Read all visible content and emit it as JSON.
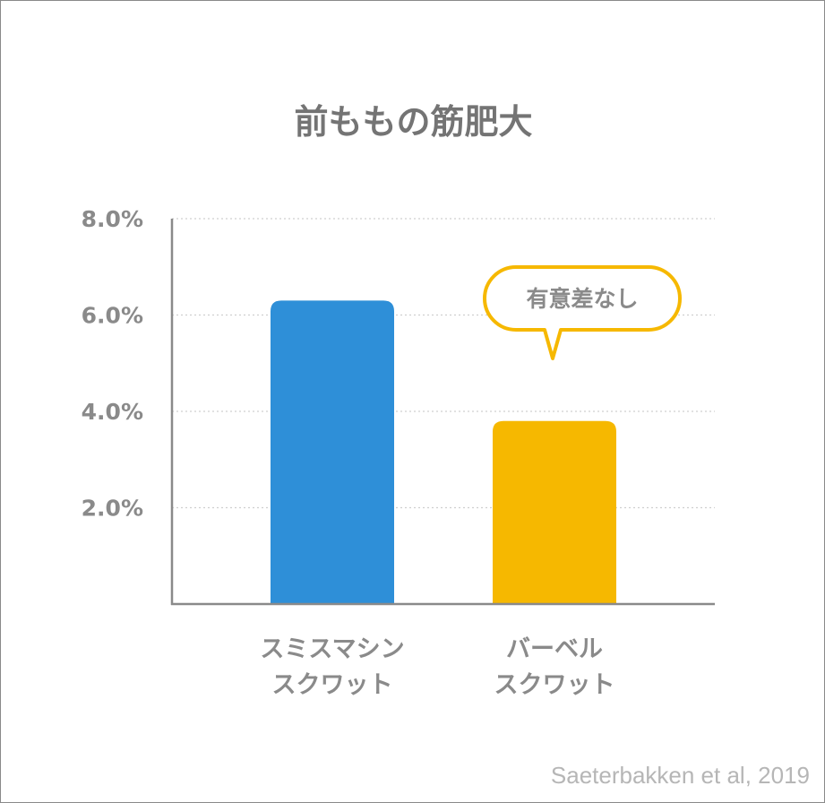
{
  "chart_data": {
    "type": "bar",
    "title": "前ももの筋肥大",
    "categories": [
      [
        "スミスマシン",
        "スクワット"
      ],
      [
        "バーベル",
        "スクワット"
      ]
    ],
    "values": [
      6.3,
      3.8
    ],
    "colors": [
      "#2e8fd8",
      "#f6b800"
    ],
    "y_ticks": [
      "2.0%",
      "4.0%",
      "6.0%",
      "8.0%"
    ],
    "y_tick_values": [
      2,
      4,
      6,
      8
    ],
    "ylim": [
      0,
      8
    ],
    "grid": "dotted horizontal",
    "annotation": {
      "text": "有意差なし",
      "target_category_index": 1,
      "color": "#f6b800"
    },
    "source": "Saeterbakken et al, 2019"
  }
}
